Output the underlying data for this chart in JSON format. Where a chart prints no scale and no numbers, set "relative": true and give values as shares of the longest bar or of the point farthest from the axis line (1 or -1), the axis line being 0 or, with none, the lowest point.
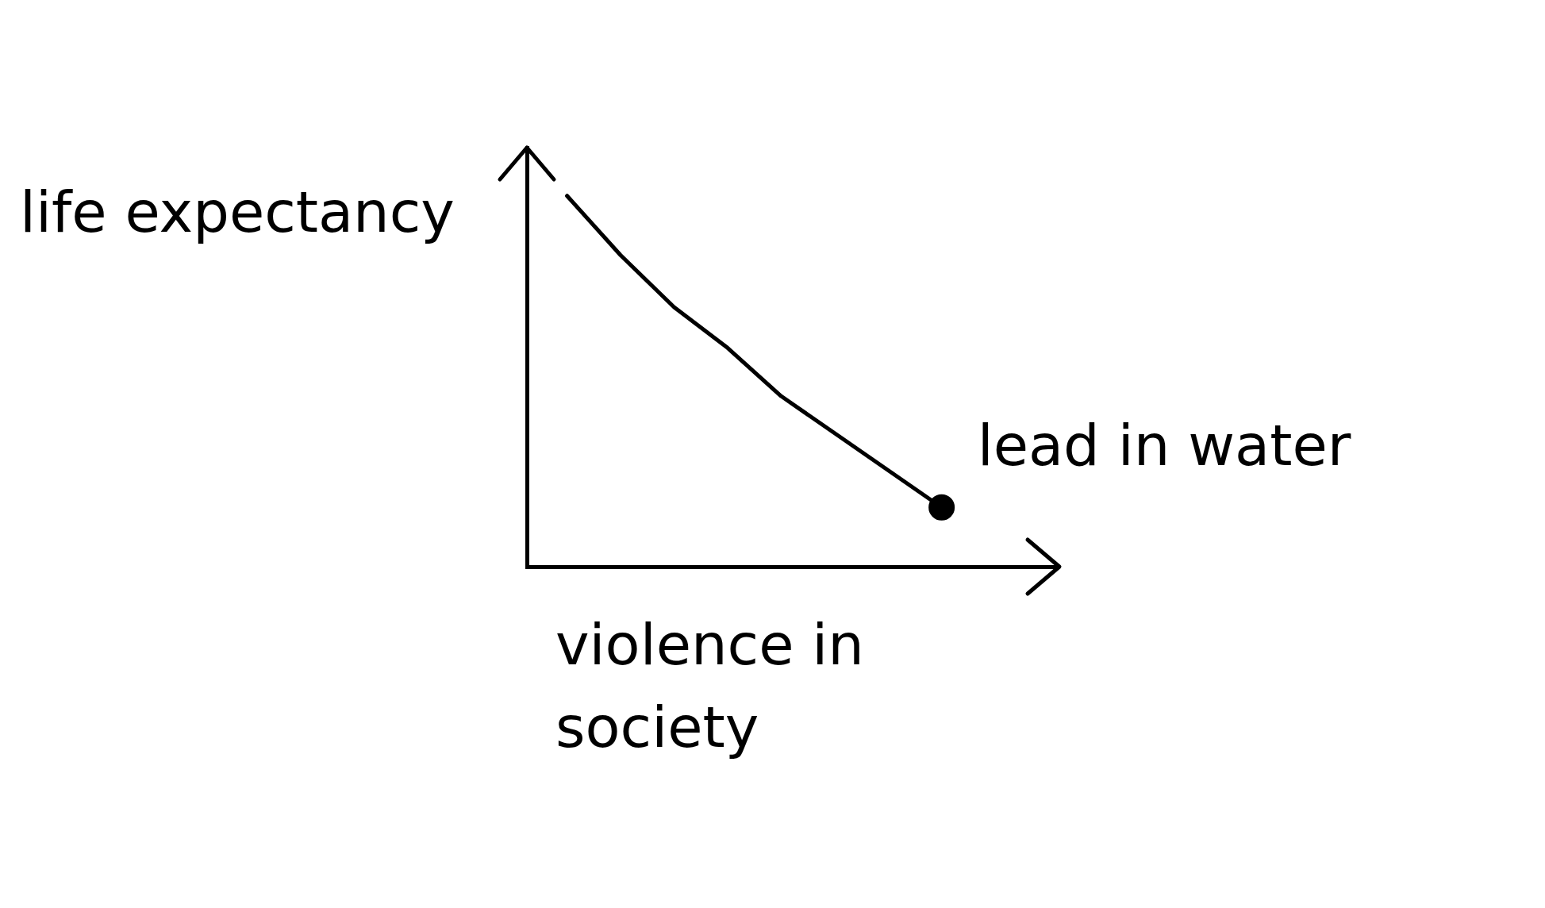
{
  "chart_data": {
    "type": "line",
    "relative": true,
    "xlabel": "violence in society",
    "ylabel": "life expectancy",
    "categories": [
      null,
      null,
      null,
      null,
      null,
      null,
      null,
      null
    ],
    "series": [
      {
        "color": "#000000",
        "values": [
          1.0,
          0.84,
          0.7,
          0.59,
          0.46,
          0.36,
          0.26,
          0.16
        ]
      }
    ],
    "annotations": [
      "lead in water"
    ],
    "line_style": "solid"
  }
}
